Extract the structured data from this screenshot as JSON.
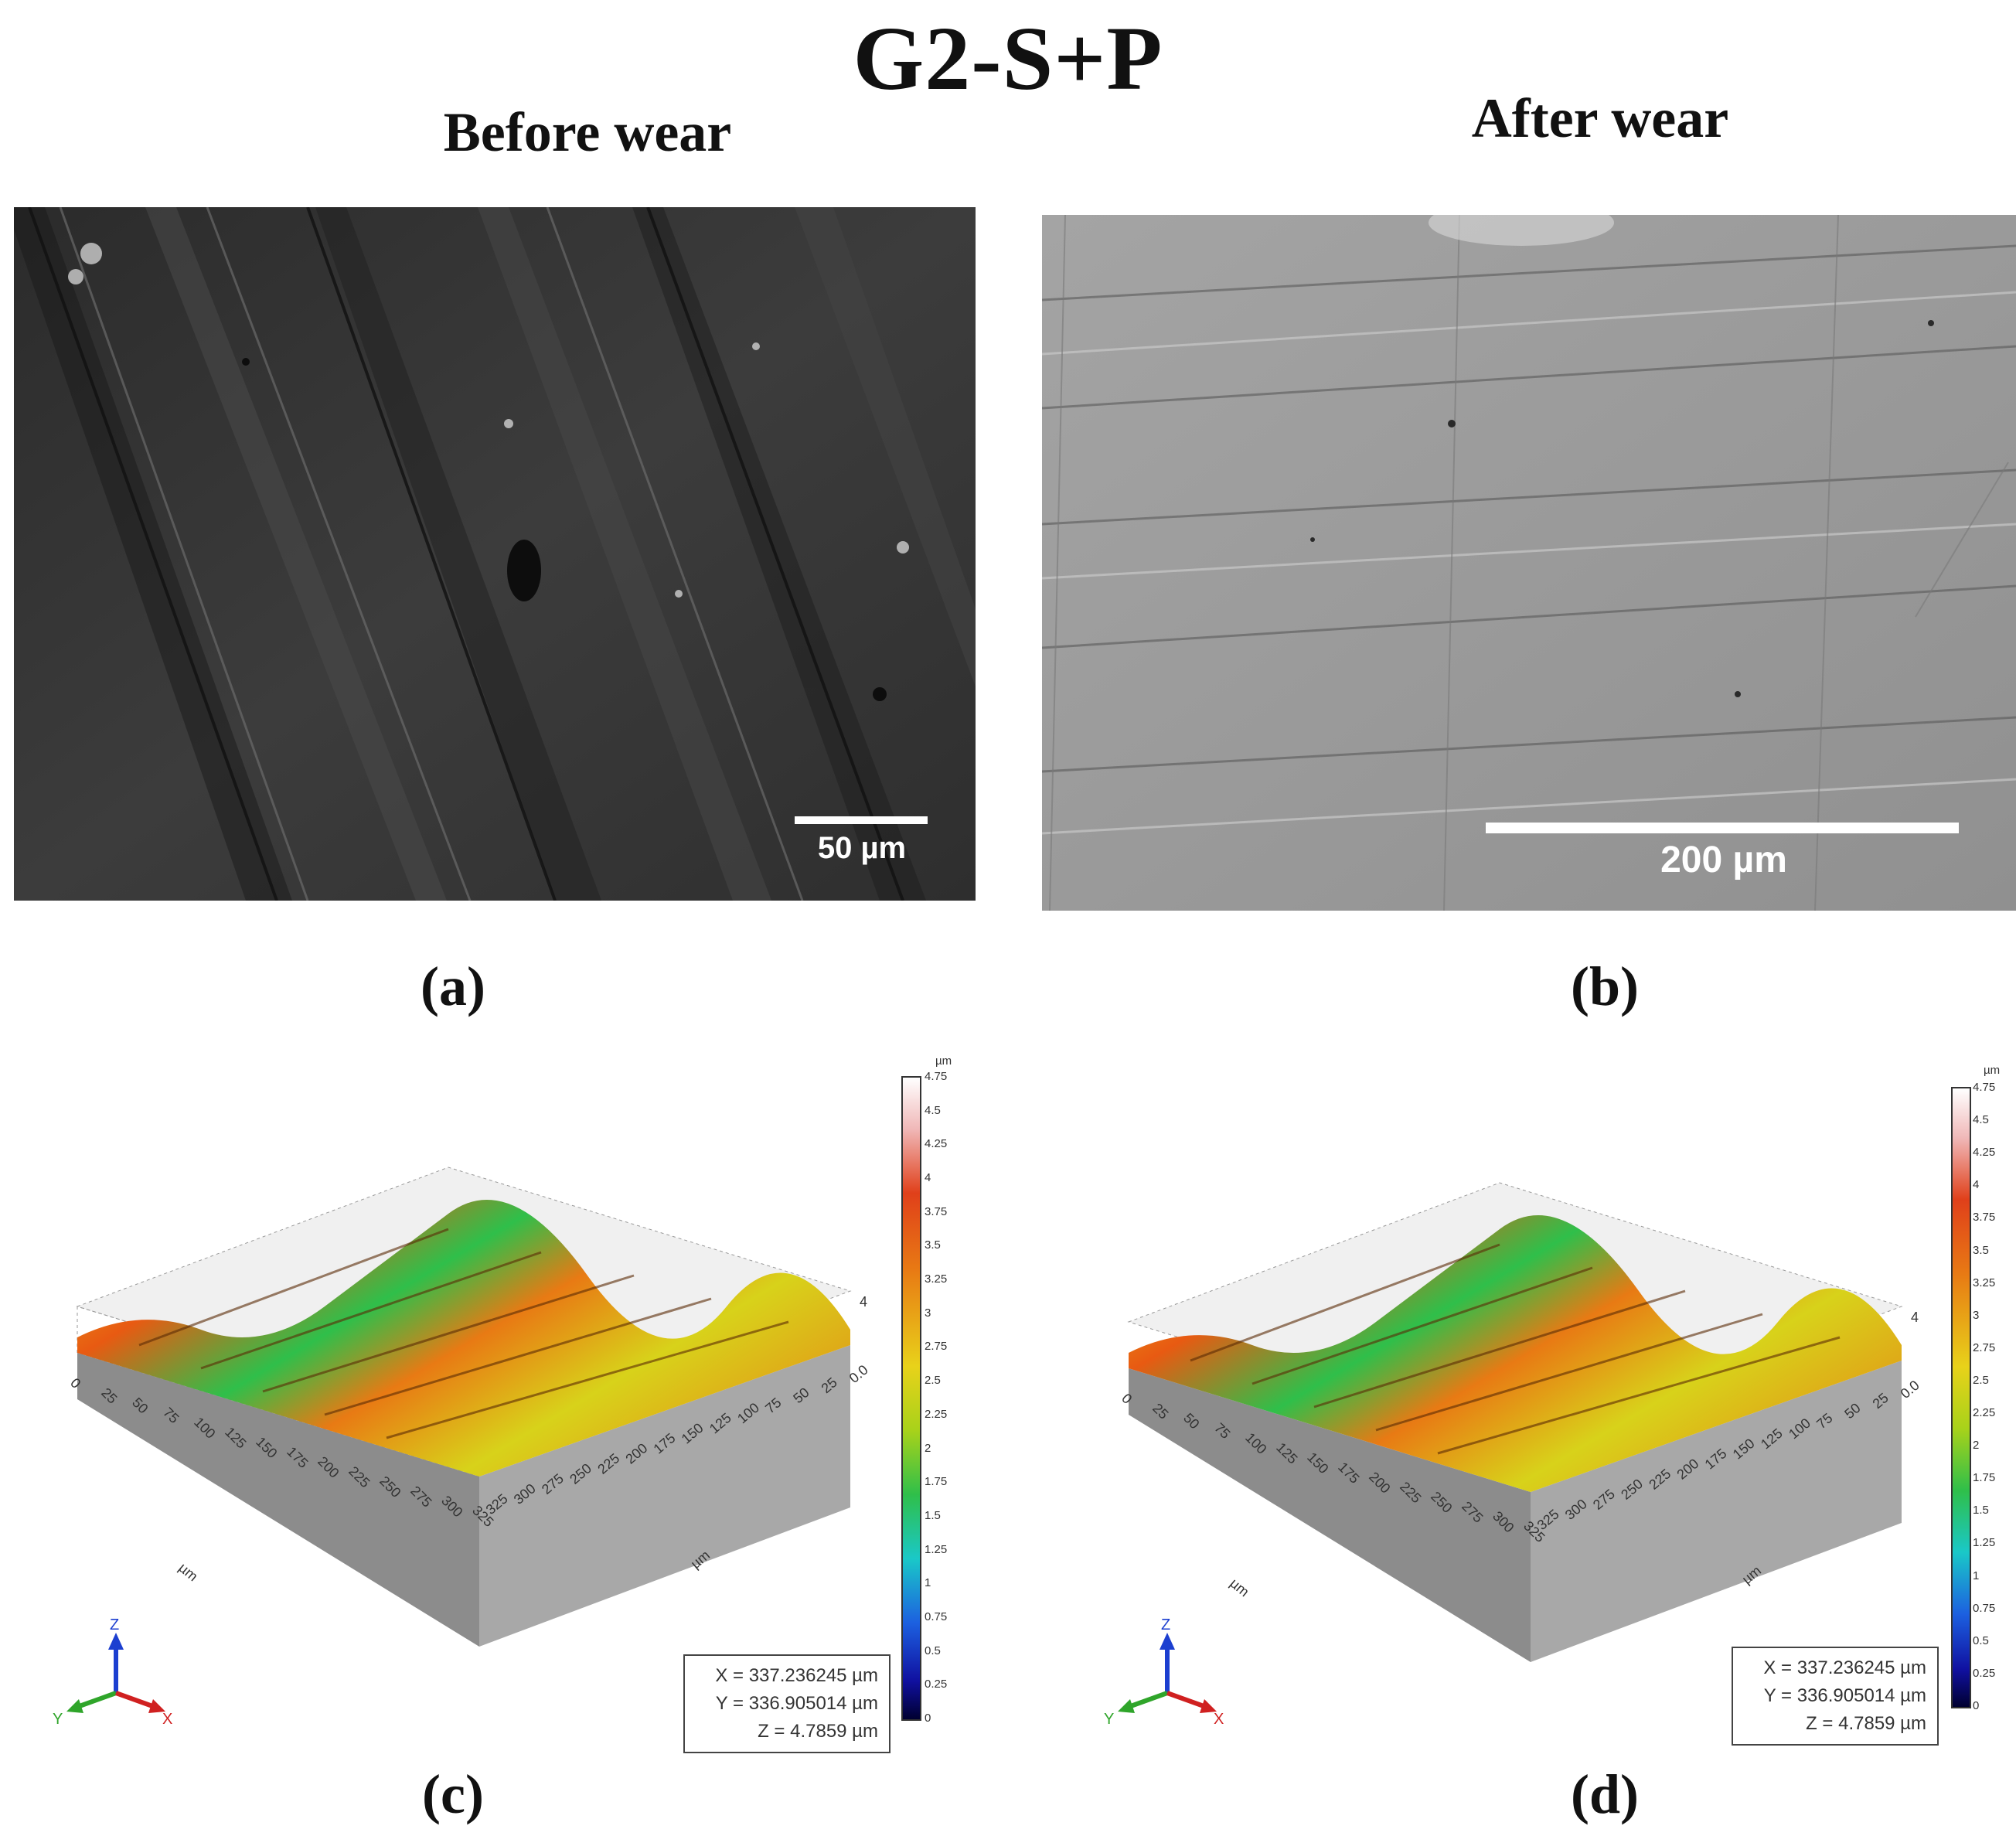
{
  "title": "G2-S+P",
  "columns": {
    "before": "Before wear",
    "after": "After wear"
  },
  "panels": {
    "a": {
      "label": "(a)",
      "scale_label": "50 µm"
    },
    "b": {
      "label": "(b)",
      "scale_label": "200 µm"
    },
    "c": {
      "label": "(c)"
    },
    "d": {
      "label": "(d)"
    }
  },
  "colorbar": {
    "unit": "µm",
    "ticks": [
      "4.75",
      "4.5",
      "4.25",
      "4",
      "3.75",
      "3.5",
      "3.25",
      "3",
      "2.75",
      "2.5",
      "2.25",
      "2",
      "1.75",
      "1.5",
      "1.25",
      "1",
      "0.75",
      "0.5",
      "0.25",
      "0"
    ]
  },
  "profile3d": {
    "x_ticks": [
      "0",
      "25",
      "50",
      "75",
      "100",
      "125",
      "150",
      "175",
      "200",
      "225",
      "250",
      "275",
      "300",
      "325"
    ],
    "y_ticks": [
      "325",
      "300",
      "275",
      "250",
      "225",
      "200",
      "175",
      "150",
      "125",
      "100",
      "75",
      "50",
      "25",
      "0.0"
    ],
    "axis_unit": "µm",
    "z_tick": "4",
    "readout": {
      "x": "X = 337.236245 µm",
      "y": "Y = 336.905014 µm",
      "z": "Z = 4.7859 µm"
    },
    "gizmo": {
      "x": "X",
      "y": "Y",
      "z": "Z"
    }
  },
  "colors": {
    "sem_dark": "#3a3a3a",
    "sem_light": "#9a9a9a"
  }
}
